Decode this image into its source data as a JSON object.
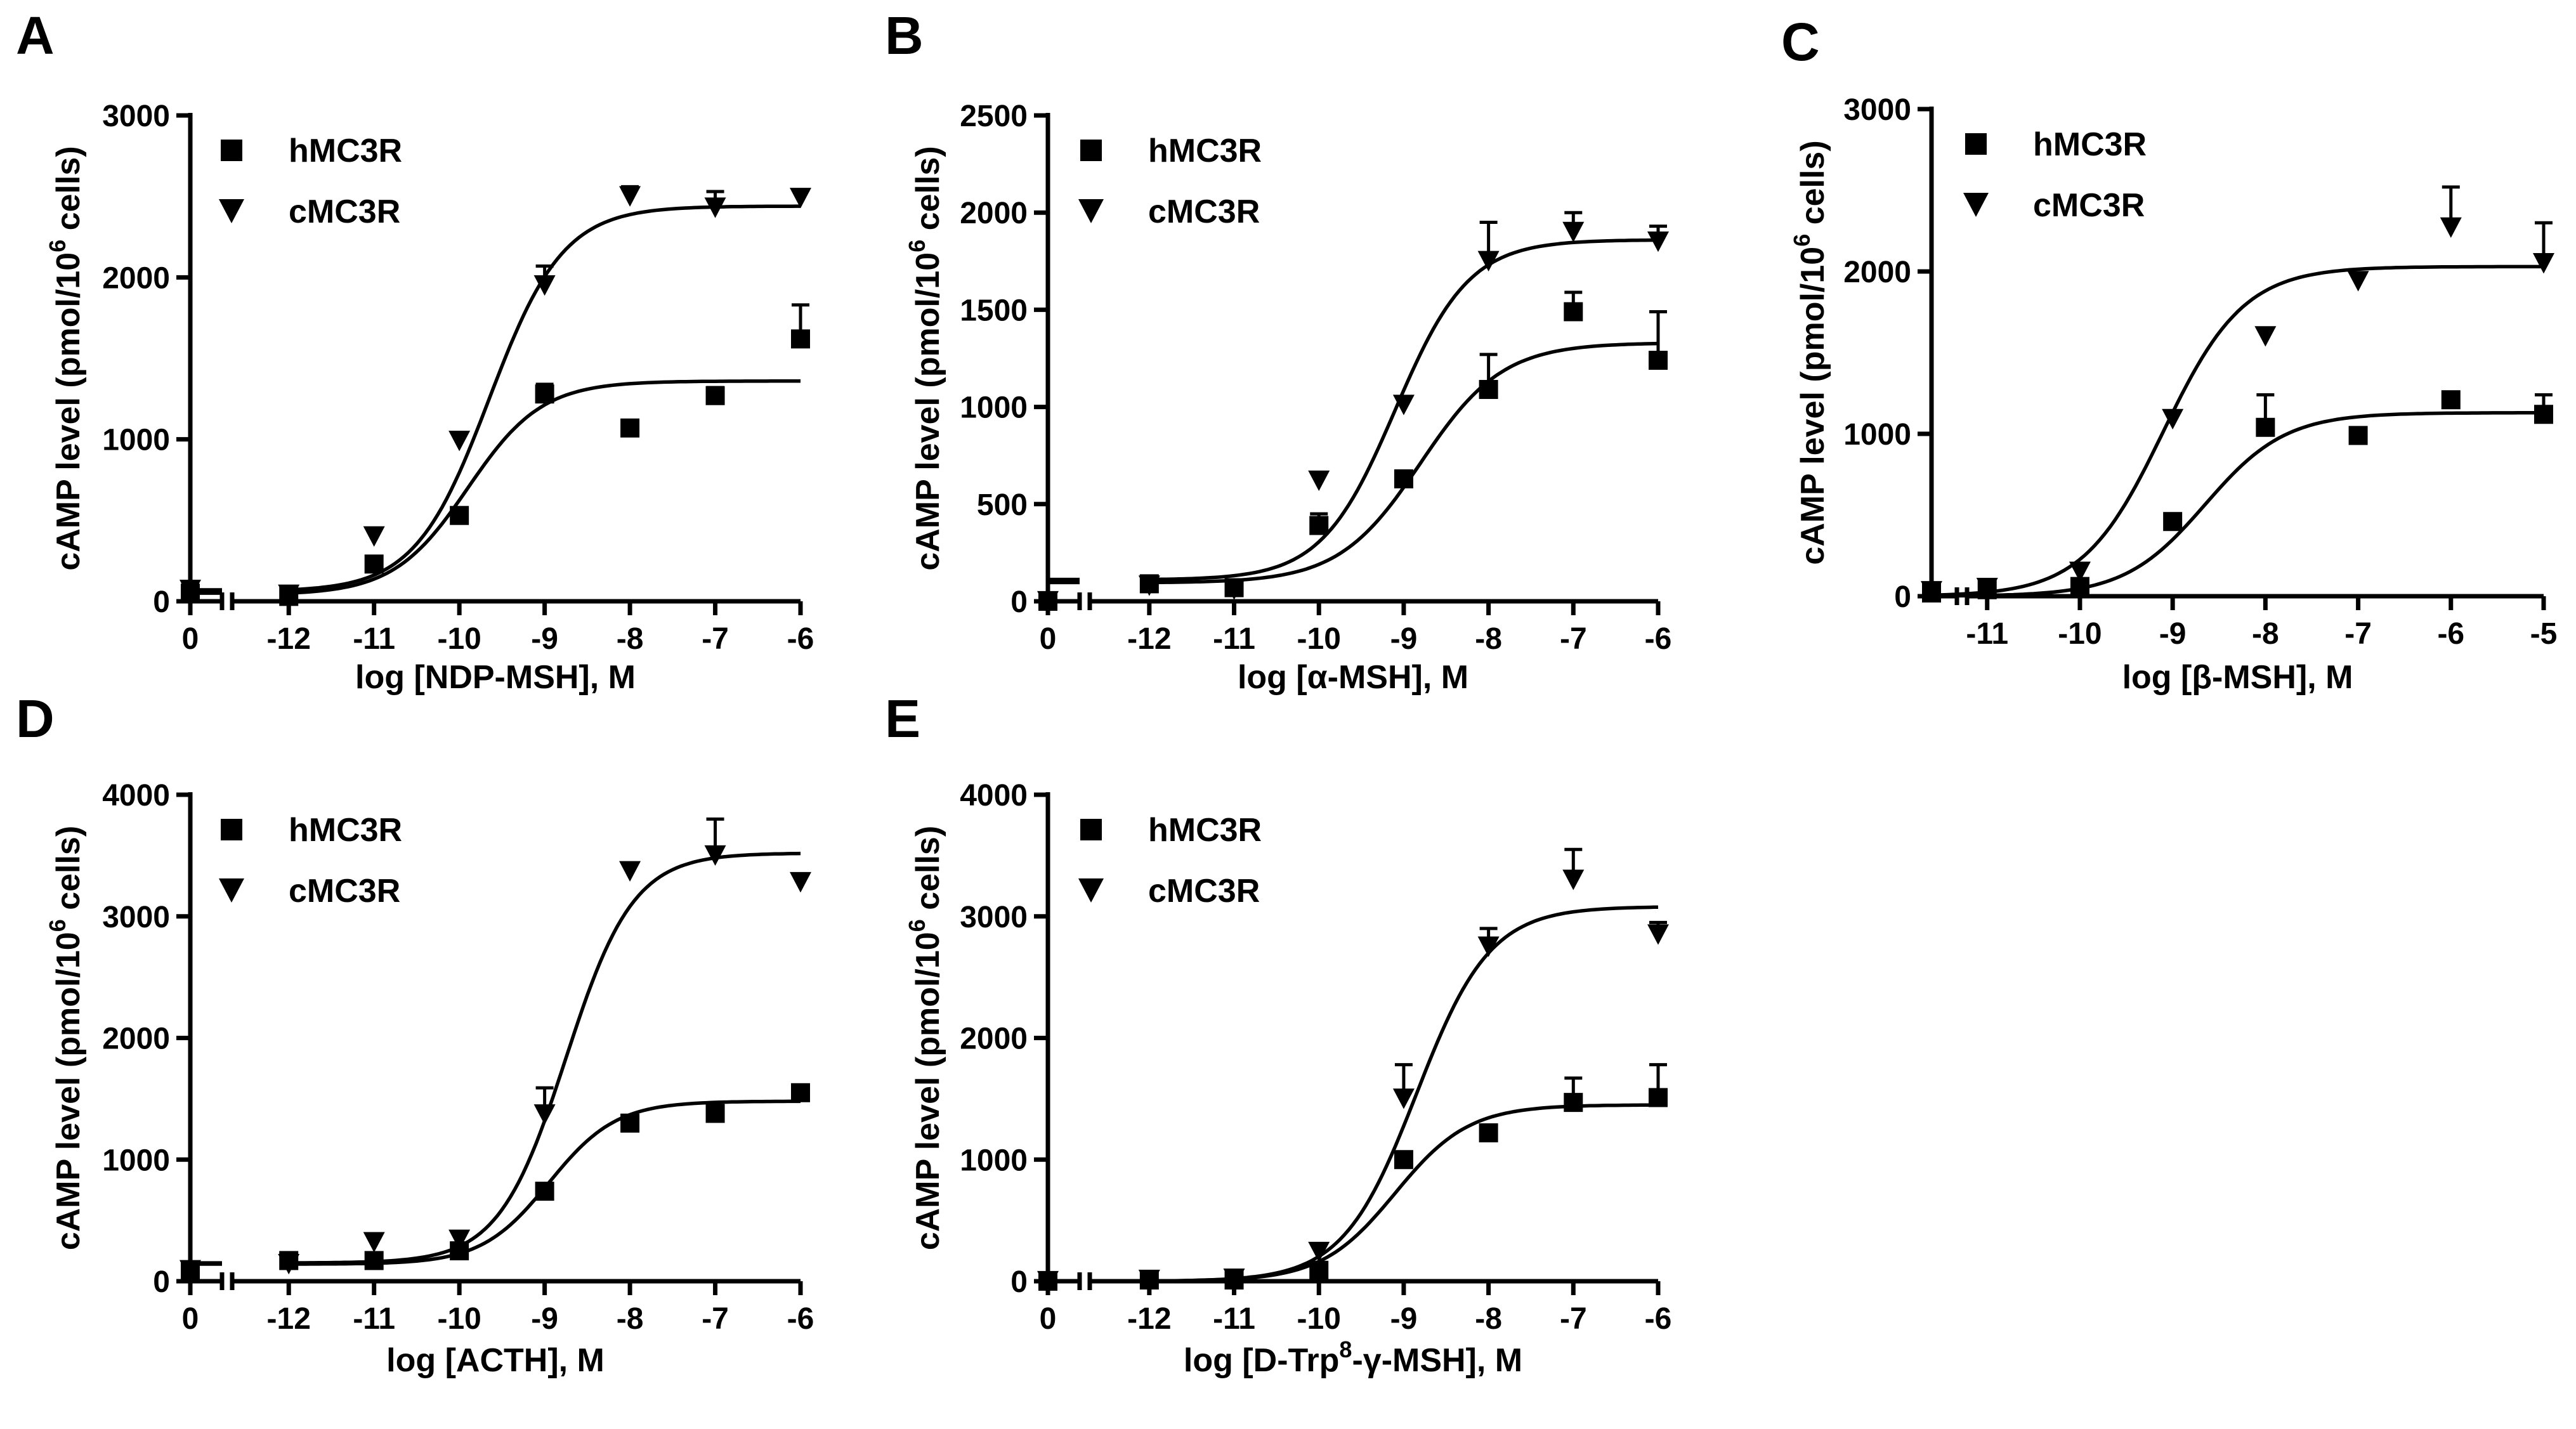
{
  "legend_labels": [
    "hMC3R",
    "cMC3R"
  ],
  "chart_data": [
    {
      "id": "A",
      "type": "scatter",
      "panel_letter": "A",
      "title": "",
      "xlabel": "log [NDP-MSH], M",
      "ylabel": "cAMP level (pmol/10^6 cells)",
      "ylabel_parts": {
        "main": "cAMP level (pmol/10",
        "sup": "6",
        "tail": " cells)"
      },
      "xlim": [
        -12.5,
        -6
      ],
      "ylim": [
        0,
        3000
      ],
      "x_ticks": [
        -12,
        -11,
        -10,
        -9,
        -8,
        -7,
        -6
      ],
      "x_tick_labels": [
        "-12",
        "-11",
        "-10",
        "-9",
        "-8",
        "-7",
        "-6"
      ],
      "x_zero_label": "0",
      "y_ticks": [
        0,
        1000,
        2000,
        3000
      ],
      "y_tick_labels": [
        "0",
        "1000",
        "2000",
        "3000"
      ],
      "legend": [
        "hMC3R",
        "cMC3R"
      ],
      "series": [
        {
          "name": "hMC3R",
          "marker": "square",
          "x": [
            -12,
            -11,
            -10,
            -9,
            -8,
            -7,
            -6
          ],
          "y": [
            30,
            230,
            530,
            1280,
            1070,
            1270,
            1620
          ],
          "err": [
            0,
            0,
            0,
            60,
            0,
            50,
            210
          ],
          "baseline": 50,
          "fit": {
            "bottom": 40,
            "top": 1360,
            "logEC50": -9.9,
            "hill": 1.0
          }
        },
        {
          "name": "cMC3R",
          "marker": "triangle-down",
          "x": [
            -12,
            -11,
            -10,
            -9,
            -8,
            -7,
            -6
          ],
          "y": [
            40,
            400,
            990,
            1950,
            2500,
            2430,
            2490
          ],
          "err": [
            0,
            0,
            0,
            120,
            60,
            100,
            0
          ],
          "baseline": 70,
          "fit": {
            "bottom": 60,
            "top": 2440,
            "logEC50": -9.65,
            "hill": 1.0
          }
        }
      ]
    },
    {
      "id": "B",
      "type": "scatter",
      "panel_letter": "B",
      "title": "",
      "xlabel": "log [α-MSH], M",
      "ylabel": "cAMP level (pmol/10^6 cells)",
      "ylabel_parts": {
        "main": "cAMP level (pmol/10",
        "sup": "6",
        "tail": " cells)"
      },
      "xlim": [
        -12.5,
        -6
      ],
      "ylim": [
        0,
        2500
      ],
      "x_ticks": [
        -12,
        -11,
        -10,
        -9,
        -8,
        -7,
        -6
      ],
      "x_tick_labels": [
        "-12",
        "-11",
        "-10",
        "-9",
        "-8",
        "-7",
        "-6"
      ],
      "x_zero_label": "0",
      "y_ticks": [
        0,
        500,
        1000,
        1500,
        2000,
        2500
      ],
      "y_tick_labels": [
        "0",
        "500",
        "1000",
        "1500",
        "2000",
        "2500"
      ],
      "legend": [
        "hMC3R",
        "cMC3R"
      ],
      "series": [
        {
          "name": "hMC3R",
          "marker": "square",
          "x": [
            -12,
            -11,
            -10,
            -9,
            -8,
            -7,
            -6
          ],
          "y": [
            90,
            70,
            390,
            630,
            1090,
            1490,
            1240
          ],
          "err": [
            0,
            0,
            60,
            0,
            180,
            100,
            250
          ],
          "baseline": 0,
          "fit": {
            "bottom": 95,
            "top": 1330,
            "logEC50": -8.8,
            "hill": 0.9
          }
        },
        {
          "name": "cMC3R",
          "marker": "triangle-down",
          "x": [
            -12,
            -11,
            -10,
            -9,
            -8,
            -7,
            -6
          ],
          "y": [
            80,
            60,
            620,
            1010,
            1750,
            1900,
            1850
          ],
          "err": [
            0,
            0,
            0,
            0,
            200,
            100,
            80
          ],
          "baseline": 0,
          "fit": {
            "bottom": 110,
            "top": 1860,
            "logEC50": -9.1,
            "hill": 1.0
          }
        }
      ]
    },
    {
      "id": "C",
      "type": "scatter",
      "panel_letter": "C",
      "title": "",
      "xlabel": "log [β-MSH], M",
      "ylabel": "cAMP level (pmol/10^6 cells)",
      "ylabel_parts": {
        "main": "cAMP level (pmol/10",
        "sup": "6",
        "tail": " cells)"
      },
      "xlim": [
        -11.6,
        -5
      ],
      "ylim": [
        0,
        3000
      ],
      "x_ticks": [
        -11,
        -10,
        -9,
        -8,
        -7,
        -6,
        -5
      ],
      "x_tick_labels": [
        "-11",
        "-10",
        "-9",
        "-8",
        "-7",
        "-6",
        "-5"
      ],
      "x_zero_label": "",
      "y_ticks": [
        0,
        1000,
        2000,
        3000
      ],
      "y_tick_labels": [
        "0",
        "1000",
        "2000",
        "3000"
      ],
      "legend": [
        "hMC3R",
        "cMC3R"
      ],
      "series": [
        {
          "name": "hMC3R",
          "marker": "square",
          "x": [
            -11.6,
            -11,
            -10,
            -9,
            -8,
            -7,
            -6,
            -5
          ],
          "y": [
            20,
            40,
            60,
            460,
            1040,
            990,
            1210,
            1120
          ],
          "err": [
            0,
            0,
            0,
            0,
            200,
            0,
            0,
            120
          ],
          "fit": {
            "bottom": 0,
            "top": 1130,
            "logEC50": -8.65,
            "hill": 1.0
          }
        },
        {
          "name": "cMC3R",
          "marker": "triangle-down",
          "x": [
            -11.6,
            -11,
            -10,
            -9,
            -8,
            -7,
            -6,
            -5
          ],
          "y": [
            30,
            50,
            150,
            1090,
            1600,
            1940,
            2270,
            2050
          ],
          "err": [
            0,
            0,
            0,
            0,
            0,
            0,
            250,
            250
          ],
          "fit": {
            "bottom": 0,
            "top": 2030,
            "logEC50": -9.1,
            "hill": 1.0
          }
        }
      ]
    },
    {
      "id": "D",
      "type": "scatter",
      "panel_letter": "D",
      "title": "",
      "xlabel": "log [ACTH], M",
      "ylabel": "cAMP level (pmol/10^6 cells)",
      "ylabel_parts": {
        "main": "cAMP level (pmol/10",
        "sup": "6",
        "tail": " cells)"
      },
      "xlim": [
        -12.5,
        -6
      ],
      "ylim": [
        0,
        4000
      ],
      "x_ticks": [
        -12,
        -11,
        -10,
        -9,
        -8,
        -7,
        -6
      ],
      "x_tick_labels": [
        "-12",
        "-11",
        "-10",
        "-9",
        "-8",
        "-7",
        "-6"
      ],
      "x_zero_label": "0",
      "y_ticks": [
        0,
        1000,
        2000,
        3000,
        4000
      ],
      "y_tick_labels": [
        "0",
        "1000",
        "2000",
        "3000",
        "4000"
      ],
      "legend": [
        "hMC3R",
        "cMC3R"
      ],
      "series": [
        {
          "name": "hMC3R",
          "marker": "square",
          "x": [
            -12,
            -11,
            -10,
            -9,
            -8,
            -7,
            -6
          ],
          "y": [
            170,
            170,
            250,
            740,
            1300,
            1380,
            1550
          ],
          "err": [
            0,
            0,
            0,
            0,
            0,
            0,
            0
          ],
          "baseline": 90,
          "fit": {
            "bottom": 140,
            "top": 1480,
            "logEC50": -8.95,
            "hill": 1.1
          }
        },
        {
          "name": "cMC3R",
          "marker": "triangle-down",
          "x": [
            -12,
            -11,
            -10,
            -9,
            -8,
            -7,
            -6
          ],
          "y": [
            140,
            320,
            340,
            1370,
            3370,
            3500,
            3280
          ],
          "err": [
            0,
            0,
            0,
            220,
            0,
            300,
            0
          ],
          "baseline": 90,
          "fit": {
            "bottom": 150,
            "top": 3520,
            "logEC50": -8.75,
            "hill": 1.1
          }
        }
      ]
    },
    {
      "id": "E",
      "type": "scatter",
      "panel_letter": "E",
      "title": "",
      "xlabel": "log [D-Trp8-γ-MSH], M",
      "xlabel_parts": {
        "main": "log [D-Trp",
        "sup": "8",
        "tail": "-γ-MSH], M"
      },
      "ylabel": "cAMP level (pmol/10^6 cells)",
      "ylabel_parts": {
        "main": "cAMP level (pmol/10",
        "sup": "6",
        "tail": " cells)"
      },
      "xlim": [
        -12.5,
        -6
      ],
      "ylim": [
        0,
        4000
      ],
      "x_ticks": [
        -12,
        -11,
        -10,
        -9,
        -8,
        -7,
        -6
      ],
      "x_tick_labels": [
        "-12",
        "-11",
        "-10",
        "-9",
        "-8",
        "-7",
        "-6"
      ],
      "x_zero_label": "0",
      "y_ticks": [
        0,
        1000,
        2000,
        3000,
        4000
      ],
      "y_tick_labels": [
        "0",
        "1000",
        "2000",
        "3000",
        "4000"
      ],
      "legend": [
        "hMC3R",
        "cMC3R"
      ],
      "series": [
        {
          "name": "hMC3R",
          "marker": "square",
          "x": [
            -12,
            -11,
            -10,
            -9,
            -8,
            -7,
            -6
          ],
          "y": [
            10,
            10,
            90,
            1000,
            1220,
            1470,
            1510
          ],
          "err": [
            0,
            0,
            0,
            0,
            0,
            200,
            270
          ],
          "baseline": 0,
          "fit": {
            "bottom": 0,
            "top": 1450,
            "logEC50": -9.1,
            "hill": 1.0
          }
        },
        {
          "name": "cMC3R",
          "marker": "triangle-down",
          "x": [
            -12,
            -11,
            -10,
            -9,
            -8,
            -7,
            -6
          ],
          "y": [
            10,
            20,
            240,
            1500,
            2750,
            3300,
            2850
          ],
          "err": [
            0,
            0,
            0,
            280,
            150,
            250,
            100
          ],
          "baseline": 0,
          "fit": {
            "bottom": 0,
            "top": 3080,
            "logEC50": -8.85,
            "hill": 1.0
          }
        }
      ]
    }
  ]
}
